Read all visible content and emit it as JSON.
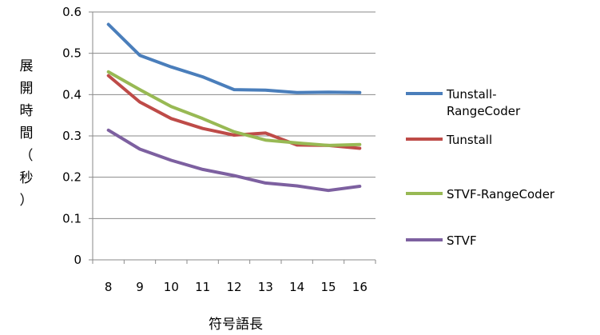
{
  "chart_data": {
    "type": "line",
    "x": [
      8,
      9,
      10,
      11,
      12,
      13,
      14,
      15,
      16
    ],
    "xlabel": "符号語長",
    "ylabel": [
      "展",
      "開",
      "時",
      "間",
      "（",
      "秒",
      "）"
    ],
    "ylim": [
      0,
      0.6
    ],
    "yticks": [
      "0",
      "0.1",
      "0.2",
      "0.3",
      "0.4",
      "0.5",
      "0.6"
    ],
    "grid": true,
    "legend_position": "right",
    "series": [
      {
        "name_lines": [
          "Tunstall-",
          "RangeCoder"
        ],
        "color": "#4a7ebb",
        "values": [
          0.57,
          0.495,
          0.467,
          0.443,
          0.412,
          0.411,
          0.405,
          0.406,
          0.405
        ]
      },
      {
        "name_lines": [
          "Tunstall"
        ],
        "color": "#be4b48",
        "values": [
          0.446,
          0.382,
          0.342,
          0.318,
          0.302,
          0.307,
          0.278,
          0.277,
          0.27
        ]
      },
      {
        "name_lines": [
          "STVF-RangeCoder"
        ],
        "color": "#98b954",
        "values": [
          0.455,
          0.412,
          0.371,
          0.342,
          0.31,
          0.29,
          0.283,
          0.277,
          0.279
        ]
      },
      {
        "name_lines": [
          "STVF"
        ],
        "color": "#7d60a0",
        "values": [
          0.314,
          0.268,
          0.241,
          0.219,
          0.204,
          0.186,
          0.179,
          0.168,
          0.178
        ]
      }
    ]
  }
}
